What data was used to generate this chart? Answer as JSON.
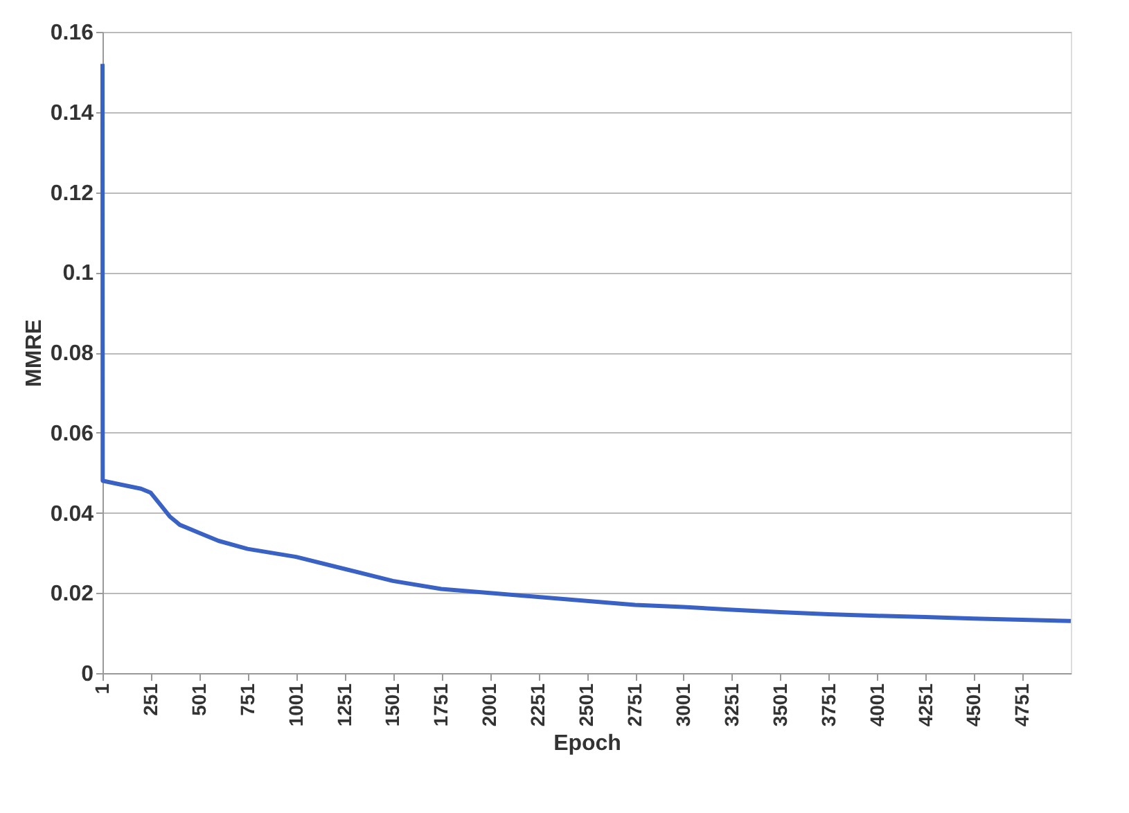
{
  "chart_data": {
    "type": "line",
    "xlabel": "Epoch",
    "ylabel": "MMRE",
    "xlim": [
      1,
      5000
    ],
    "xticks": [
      1,
      251,
      501,
      751,
      1001,
      1251,
      1501,
      1751,
      2001,
      2251,
      2501,
      2751,
      3001,
      3251,
      3501,
      3751,
      4001,
      4251,
      4501,
      4751
    ],
    "ylim": [
      0,
      0.16
    ],
    "yticks": [
      0,
      0.02,
      0.04,
      0.06,
      0.08,
      0.1,
      0.12,
      0.14,
      0.16
    ],
    "grid": "y",
    "marker": "none",
    "line_style": "solid",
    "series": [
      {
        "color": "#3a62c4",
        "x": [
          1,
          2,
          100,
          200,
          250,
          300,
          350,
          400,
          500,
          600,
          750,
          1000,
          1250,
          1500,
          1750,
          2000,
          2250,
          2500,
          2750,
          3000,
          3250,
          3500,
          3750,
          4000,
          4250,
          4500,
          4750,
          5000
        ],
        "values": [
          0.152,
          0.048,
          0.047,
          0.046,
          0.045,
          0.042,
          0.039,
          0.037,
          0.035,
          0.033,
          0.031,
          0.029,
          0.026,
          0.023,
          0.021,
          0.02,
          0.019,
          0.018,
          0.017,
          0.0165,
          0.0158,
          0.0152,
          0.0147,
          0.0143,
          0.014,
          0.0136,
          0.0133,
          0.013
        ]
      }
    ]
  }
}
